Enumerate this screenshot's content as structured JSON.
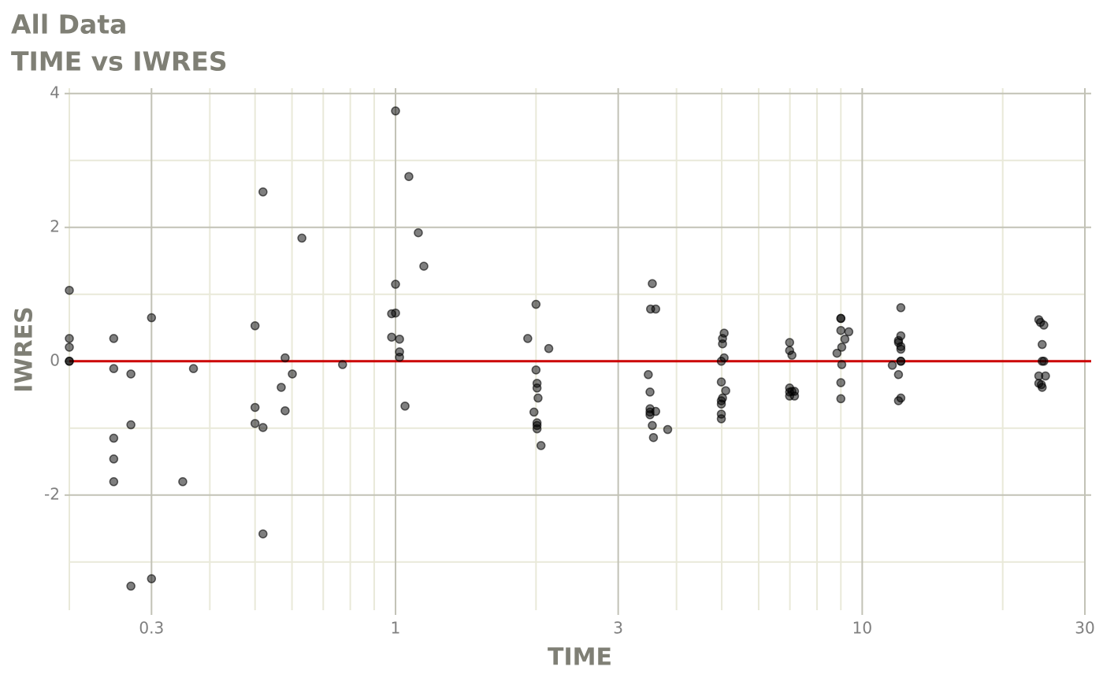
{
  "chart_data": {
    "type": "scatter",
    "title": "All Data",
    "subtitle": "TIME vs IWRES",
    "xlabel": "TIME",
    "ylabel": "IWRES",
    "log_x": true,
    "grid": true,
    "xlim": [
      0.2,
      30
    ],
    "ylim": [
      -3.72,
      4.08
    ],
    "xticks": [
      0.3,
      1,
      3,
      10,
      30
    ],
    "yticks": [
      -2,
      0,
      2,
      4
    ],
    "color": "#000000",
    "reference_line": {
      "value": 0,
      "color": "#cc0000"
    },
    "x": [
      0.2,
      0.2,
      0.2,
      0.2,
      0.2,
      0.249,
      0.249,
      0.249,
      0.249,
      0.249,
      0.271,
      0.271,
      0.271,
      0.3,
      0.3,
      0.35,
      0.369,
      0.5,
      0.5,
      0.5,
      0.52,
      0.52,
      0.52,
      0.569,
      0.58,
      0.58,
      0.601,
      0.63,
      0.77,
      0.981,
      0.981,
      1,
      1,
      1,
      1.02,
      1.02,
      1.02,
      1.048,
      1.068,
      1.119,
      1.15,
      1.92,
      2.0,
      2.0,
      2.01,
      2.01,
      2.01,
      2.01,
      2.01,
      2.02,
      1.98,
      2.05,
      2.13,
      3.48,
      3.51,
      3.51,
      3.51,
      3.51,
      3.52,
      3.55,
      3.55,
      3.57,
      3.61,
      3.61,
      3.83,
      4.99,
      4.99,
      4.99,
      4.99,
      4.99,
      4.99,
      5.02,
      5.02,
      5.02,
      5.06,
      5.06,
      5.1,
      6.99,
      6.99,
      6.99,
      6.99,
      6.99,
      7.07,
      7.07,
      7.16,
      7.16,
      8.83,
      9.0,
      9.0,
      9.0,
      9.0,
      9.0,
      9.04,
      9.04,
      9.18,
      9.36,
      11.6,
      11.96,
      11.96,
      11.96,
      11.96,
      12.1,
      12.1,
      12.1,
      12.1,
      12.1,
      12.1,
      12.1,
      23.9,
      23.9,
      23.9,
      24.1,
      24.2,
      24.3,
      24.3,
      24.3,
      24.5,
      24.5,
      24.7
    ],
    "y": [
      1.06,
      0.34,
      0.21,
      0,
      0,
      0.34,
      -0.11,
      -1.15,
      -1.46,
      -1.8,
      -0.19,
      -0.95,
      -3.36,
      0.65,
      -3.25,
      -1.8,
      -0.11,
      0.53,
      -0.69,
      -0.93,
      2.53,
      -0.99,
      -2.58,
      -0.39,
      0.05,
      -0.74,
      -0.19,
      1.84,
      -0.05,
      0.71,
      0.36,
      3.74,
      1.15,
      0.72,
      0.33,
      0.14,
      0.06,
      -0.67,
      2.76,
      1.92,
      1.42,
      0.34,
      0.85,
      -0.13,
      -0.33,
      -0.4,
      -0.96,
      -0.92,
      -1.01,
      -0.55,
      -0.76,
      -1.26,
      0.19,
      -0.2,
      -0.46,
      -0.71,
      -0.8,
      -0.76,
      0.78,
      1.16,
      -0.96,
      -1.14,
      0.78,
      -0.75,
      -1.02,
      0,
      -0.31,
      -0.59,
      -0.64,
      -0.79,
      -0.86,
      0.26,
      0.34,
      -0.55,
      0.42,
      0.05,
      -0.44,
      0.28,
      0.16,
      -0.4,
      -0.46,
      -0.52,
      0.09,
      -0.45,
      -0.45,
      -0.52,
      0.12,
      0.64,
      0.64,
      0.46,
      -0.32,
      -0.56,
      0.21,
      -0.05,
      0.33,
      0.44,
      -0.06,
      0.31,
      0.28,
      -0.2,
      -0.59,
      0.8,
      0.38,
      0.22,
      0.18,
      0,
      0,
      -0.55,
      0.62,
      -0.22,
      -0.33,
      0.58,
      -0.35,
      0.25,
      0,
      -0.39,
      0.54,
      0,
      -0.22
    ]
  }
}
